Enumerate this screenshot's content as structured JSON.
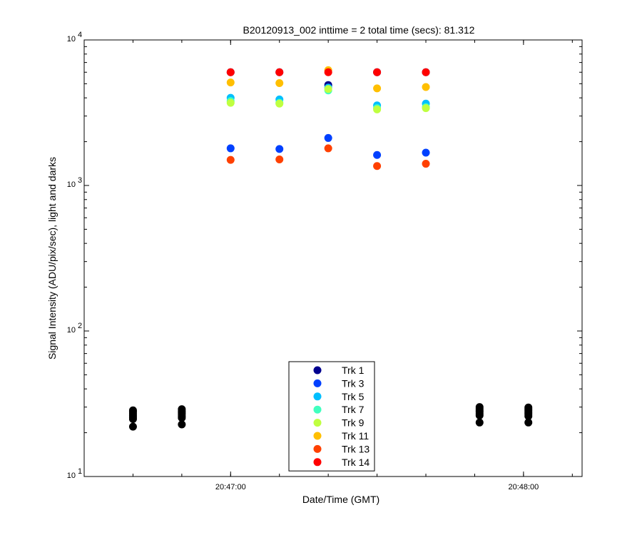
{
  "chart_data": {
    "type": "scatter",
    "title": "B20120913_002 inttime = 2 total time (secs): 81.312",
    "xlabel": "Date/Time (GMT)",
    "ylabel": "Signal Intensity (ADU/pix/sec), light and darks",
    "y_scale": "log",
    "ylim": [
      10,
      10000
    ],
    "xlim": [
      "20:46:30",
      "20:48:12"
    ],
    "x_ticks": [
      "20:47:00",
      "20:48:00"
    ],
    "y_ticks": [
      {
        "value": 10,
        "base": "10",
        "exp": "1"
      },
      {
        "value": 100,
        "base": "10",
        "exp": "2"
      },
      {
        "value": 1000,
        "base": "10",
        "exp": "3"
      },
      {
        "value": 10000,
        "base": "10",
        "exp": "4"
      }
    ],
    "legend_position": "bottom-center",
    "series": [
      {
        "name": "Trk 1",
        "color": "#00008f",
        "points": [
          [
            "20:47:00",
            6000
          ],
          [
            "20:47:10",
            6000
          ],
          [
            "20:47:20",
            4900
          ],
          [
            "20:47:30",
            6000
          ],
          [
            "20:47:40",
            6000
          ]
        ]
      },
      {
        "name": "Trk 3",
        "color": "#0040ff",
        "points": [
          [
            "20:47:00",
            1800
          ],
          [
            "20:47:10",
            1780
          ],
          [
            "20:47:20",
            2120
          ],
          [
            "20:47:30",
            1620
          ],
          [
            "20:47:40",
            1680
          ]
        ]
      },
      {
        "name": "Trk 5",
        "color": "#00bfff",
        "points": [
          [
            "20:47:00",
            4000
          ],
          [
            "20:47:10",
            3900
          ],
          [
            "20:47:20",
            4700
          ],
          [
            "20:47:30",
            3550
          ],
          [
            "20:47:40",
            3650
          ]
        ]
      },
      {
        "name": "Trk 7",
        "color": "#40ffbf",
        "points": [
          [
            "20:47:00",
            3800
          ],
          [
            "20:47:10",
            3700
          ],
          [
            "20:47:20",
            4500
          ],
          [
            "20:47:30",
            3400
          ],
          [
            "20:47:40",
            3450
          ]
        ]
      },
      {
        "name": "Trk 9",
        "color": "#bfff40",
        "points": [
          [
            "20:47:00",
            3700
          ],
          [
            "20:47:10",
            3650
          ],
          [
            "20:47:20",
            4600
          ],
          [
            "20:47:30",
            3330
          ],
          [
            "20:47:40",
            3400
          ]
        ]
      },
      {
        "name": "Trk 11",
        "color": "#ffbf00",
        "points": [
          [
            "20:47:00",
            5100
          ],
          [
            "20:47:10",
            5050
          ],
          [
            "20:47:20",
            6200
          ],
          [
            "20:47:30",
            4650
          ],
          [
            "20:47:40",
            4750
          ]
        ]
      },
      {
        "name": "Trk 13",
        "color": "#ff4000",
        "points": [
          [
            "20:47:00",
            1500
          ],
          [
            "20:47:10",
            1510
          ],
          [
            "20:47:20",
            1800
          ],
          [
            "20:47:30",
            1360
          ],
          [
            "20:47:40",
            1410
          ]
        ]
      },
      {
        "name": "Trk 14",
        "color": "#ff0000",
        "points": [
          [
            "20:47:00",
            6000
          ],
          [
            "20:47:10",
            6000
          ],
          [
            "20:47:20",
            6000
          ],
          [
            "20:47:30",
            6000
          ],
          [
            "20:47:40",
            6000
          ]
        ]
      }
    ],
    "darks": {
      "color": "#000000",
      "groups": [
        {
          "x": "20:46:40",
          "values": [
            28.5,
            27.8,
            27.0,
            26.2,
            25.5,
            24.8,
            22.0
          ]
        },
        {
          "x": "20:46:50",
          "values": [
            29.0,
            28.2,
            27.5,
            26.8,
            26.0,
            25.3,
            22.8
          ]
        },
        {
          "x": "20:47:51",
          "values": [
            30.0,
            29.2,
            28.5,
            27.8,
            27.0,
            26.3,
            23.5
          ]
        },
        {
          "x": "20:48:01",
          "values": [
            29.8,
            29.0,
            28.3,
            27.5,
            26.8,
            26.0,
            23.5
          ]
        }
      ]
    }
  }
}
